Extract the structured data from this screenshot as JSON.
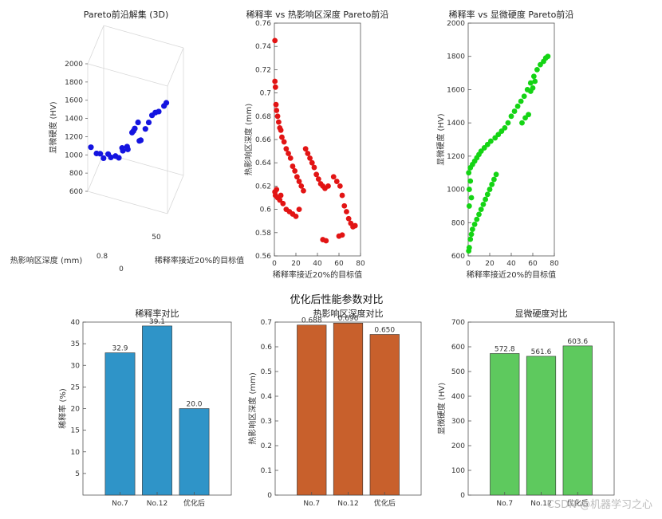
{
  "supertitle": "优化后性能参数对比",
  "watermark": "CSDN @机器学习之心",
  "colors": {
    "blue": "#1414e0",
    "red": "#e21414",
    "green": "#14d414",
    "bar1": "#2f94c8",
    "bar2": "#c8602c",
    "bar3": "#5ec95e"
  },
  "chart_data": [
    {
      "type": "scatter3d",
      "title": "Pareto前沿解集 (3D)",
      "zlabel": "显微硬度 (HV)",
      "xlabel": "稀释率接近20%的目标值",
      "ylabel": "热影响区深度 (mm)",
      "zticks": [
        "2000",
        "1800",
        "1600",
        "1400",
        "1200",
        "1000",
        "800",
        "600"
      ],
      "xticks": [
        "50",
        "0"
      ],
      "yticks": [
        "0.8"
      ],
      "points": [
        {
          "x": 0,
          "y": 0.6,
          "z": 1000
        },
        {
          "x": 5,
          "y": 0.61,
          "z": 930
        },
        {
          "x": 8,
          "y": 0.62,
          "z": 920
        },
        {
          "x": 12,
          "y": 0.61,
          "z": 900
        },
        {
          "x": 16,
          "y": 0.62,
          "z": 940
        },
        {
          "x": 20,
          "y": 0.6,
          "z": 950
        },
        {
          "x": 24,
          "y": 0.61,
          "z": 960
        },
        {
          "x": 28,
          "y": 0.6,
          "z": 970
        },
        {
          "x": 30,
          "y": 0.62,
          "z": 1050
        },
        {
          "x": 32,
          "y": 0.6,
          "z": 1060
        },
        {
          "x": 35,
          "y": 0.62,
          "z": 1080
        },
        {
          "x": 37,
          "y": 0.6,
          "z": 1090
        },
        {
          "x": 40,
          "y": 0.62,
          "z": 1250
        },
        {
          "x": 42,
          "y": 0.61,
          "z": 1290
        },
        {
          "x": 44,
          "y": 0.6,
          "z": 1340
        },
        {
          "x": 46,
          "y": 0.62,
          "z": 1380
        },
        {
          "x": 48,
          "y": 0.61,
          "z": 1200
        },
        {
          "x": 50,
          "y": 0.6,
          "z": 1230
        },
        {
          "x": 54,
          "y": 0.61,
          "z": 1350
        },
        {
          "x": 58,
          "y": 0.6,
          "z": 1450
        },
        {
          "x": 60,
          "y": 0.62,
          "z": 1500
        },
        {
          "x": 64,
          "y": 0.61,
          "z": 1560
        },
        {
          "x": 68,
          "y": 0.6,
          "z": 1600
        },
        {
          "x": 72,
          "y": 0.62,
          "z": 1640
        },
        {
          "x": 75,
          "y": 0.61,
          "z": 1700
        }
      ]
    },
    {
      "type": "scatter",
      "title": "稀释率 vs 热影响区深度 Pareto前沿",
      "xlabel": "稀释率接近20%的目标值",
      "ylabel": "热影响区深度 (mm)",
      "xlim": [
        0,
        80
      ],
      "ylim": [
        0.56,
        0.76
      ],
      "xticks": [
        0,
        20,
        40,
        60,
        80
      ],
      "yticks": [
        0.56,
        0.58,
        0.6,
        0.62,
        0.64,
        0.66,
        0.68,
        0.7,
        0.72,
        0.74,
        0.76
      ],
      "points": [
        [
          0.5,
          0.745
        ],
        [
          0.5,
          0.71
        ],
        [
          1,
          0.705
        ],
        [
          1.5,
          0.69
        ],
        [
          2,
          0.685
        ],
        [
          3,
          0.68
        ],
        [
          4,
          0.675
        ],
        [
          5,
          0.67
        ],
        [
          6,
          0.668
        ],
        [
          7,
          0.662
        ],
        [
          9,
          0.658
        ],
        [
          11,
          0.652
        ],
        [
          13,
          0.648
        ],
        [
          15,
          0.644
        ],
        [
          17,
          0.637
        ],
        [
          19,
          0.633
        ],
        [
          21,
          0.628
        ],
        [
          23,
          0.624
        ],
        [
          25,
          0.62
        ],
        [
          27,
          0.616
        ],
        [
          29,
          0.652
        ],
        [
          31,
          0.648
        ],
        [
          33,
          0.644
        ],
        [
          35,
          0.64
        ],
        [
          37,
          0.636
        ],
        [
          39,
          0.63
        ],
        [
          41,
          0.626
        ],
        [
          43,
          0.622
        ],
        [
          45,
          0.62
        ],
        [
          47,
          0.618
        ],
        [
          50,
          0.62
        ],
        [
          55,
          0.628
        ],
        [
          58,
          0.624
        ],
        [
          61,
          0.62
        ],
        [
          63,
          0.612
        ],
        [
          65,
          0.603
        ],
        [
          67,
          0.598
        ],
        [
          69,
          0.592
        ],
        [
          71,
          0.588
        ],
        [
          73,
          0.585
        ],
        [
          75,
          0.586
        ],
        [
          1,
          0.612
        ],
        [
          3,
          0.61
        ],
        [
          5,
          0.608
        ],
        [
          8,
          0.605
        ],
        [
          11,
          0.6
        ],
        [
          14,
          0.598
        ],
        [
          17,
          0.596
        ],
        [
          20,
          0.594
        ],
        [
          23,
          0.6
        ],
        [
          45,
          0.574
        ],
        [
          48,
          0.573
        ],
        [
          60,
          0.577
        ],
        [
          63,
          0.578
        ],
        [
          0.5,
          0.615
        ],
        [
          2,
          0.617
        ],
        [
          6,
          0.612
        ]
      ]
    },
    {
      "type": "scatter",
      "title": "稀释率 vs 显微硬度 Pareto前沿",
      "xlabel": "稀释率接近20%的目标值",
      "ylabel": "显微硬度 (HV)",
      "xlim": [
        0,
        80
      ],
      "ylim": [
        600,
        2000
      ],
      "xticks": [
        0,
        20,
        40,
        60,
        80
      ],
      "yticks": [
        600,
        800,
        1000,
        1200,
        1400,
        1600,
        1800,
        2000
      ],
      "points": [
        [
          0.5,
          630
        ],
        [
          1,
          650
        ],
        [
          2,
          700
        ],
        [
          3,
          730
        ],
        [
          4,
          760
        ],
        [
          6,
          790
        ],
        [
          8,
          820
        ],
        [
          10,
          850
        ],
        [
          12,
          880
        ],
        [
          14,
          910
        ],
        [
          16,
          940
        ],
        [
          18,
          970
        ],
        [
          20,
          1000
        ],
        [
          22,
          1030
        ],
        [
          24,
          1060
        ],
        [
          26,
          1090
        ],
        [
          0.5,
          1100
        ],
        [
          2,
          1130
        ],
        [
          4,
          1150
        ],
        [
          6,
          1170
        ],
        [
          8,
          1190
        ],
        [
          10,
          1210
        ],
        [
          12,
          1230
        ],
        [
          15,
          1250
        ],
        [
          18,
          1270
        ],
        [
          21,
          1290
        ],
        [
          25,
          1310
        ],
        [
          28,
          1330
        ],
        [
          31,
          1350
        ],
        [
          34,
          1370
        ],
        [
          37,
          1400
        ],
        [
          40,
          1440
        ],
        [
          43,
          1470
        ],
        [
          46,
          1500
        ],
        [
          49,
          1530
        ],
        [
          52,
          1560
        ],
        [
          55,
          1600
        ],
        [
          58,
          1640
        ],
        [
          61,
          1680
        ],
        [
          64,
          1720
        ],
        [
          67,
          1750
        ],
        [
          70,
          1770
        ],
        [
          72,
          1790
        ],
        [
          74,
          1800
        ],
        [
          50,
          1400
        ],
        [
          53,
          1430
        ],
        [
          56,
          1450
        ],
        [
          58,
          1590
        ],
        [
          60,
          1610
        ],
        [
          62,
          1650
        ],
        [
          1,
          1000
        ],
        [
          2,
          1050
        ],
        [
          3,
          950
        ],
        [
          1,
          900
        ]
      ]
    },
    {
      "type": "bar",
      "title": "稀释率对比",
      "ylabel": "稀释率 (%)",
      "categories": [
        "No.7",
        "No.12",
        "优化后"
      ],
      "values": [
        32.9,
        39.1,
        20.0
      ],
      "labels": [
        "32.9",
        "39.1",
        "20.0"
      ],
      "ylim": [
        0,
        40
      ],
      "yticks": [
        5,
        10,
        15,
        20,
        25,
        30,
        35,
        40
      ]
    },
    {
      "type": "bar",
      "title": "热影响区深度对比",
      "ylabel": "热影响区深度 (mm)",
      "categories": [
        "No.7",
        "No.12",
        "优化后"
      ],
      "values": [
        0.688,
        0.696,
        0.65
      ],
      "labels": [
        "0.688",
        "0.696",
        "0.650"
      ],
      "ylim": [
        0,
        0.7
      ],
      "yticks": [
        0,
        0.1,
        0.2,
        0.3,
        0.4,
        0.5,
        0.6,
        0.7
      ]
    },
    {
      "type": "bar",
      "title": "显微硬度对比",
      "ylabel": "显微硬度 (HV)",
      "categories": [
        "No.7",
        "No.12",
        "优化后"
      ],
      "values": [
        572.8,
        561.6,
        603.6
      ],
      "labels": [
        "572.8",
        "561.6",
        "603.6"
      ],
      "ylim": [
        0,
        700
      ],
      "yticks": [
        0,
        100,
        200,
        300,
        400,
        500,
        600,
        700
      ]
    }
  ]
}
